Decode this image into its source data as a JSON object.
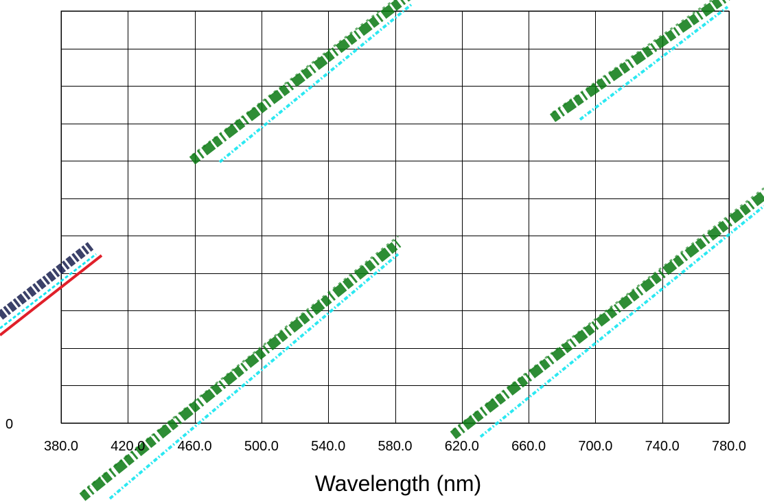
{
  "chart_data": {
    "type": "line",
    "title": "",
    "xlabel": "Wavelength (nm)",
    "ylabel": "",
    "xlim": [
      380,
      780
    ],
    "x_ticks": [
      380,
      420,
      460,
      500,
      540,
      580,
      620,
      660,
      700,
      740,
      780
    ],
    "x_tick_labels": [
      "380.0",
      "420.0",
      "460.0",
      "500.0",
      "540.0",
      "580.0",
      "620.0",
      "660.0",
      "700.0",
      "740.0",
      "780.0"
    ],
    "y_tick_partial": "0",
    "grid": true,
    "grid_rows": 11,
    "series": []
  },
  "colors": {
    "grid": "#000000",
    "watermark_green": "#0a7a12",
    "watermark_cyan": "#16e6f0",
    "watermark_red": "#e0202a",
    "watermark_navy": "#1a2050"
  }
}
